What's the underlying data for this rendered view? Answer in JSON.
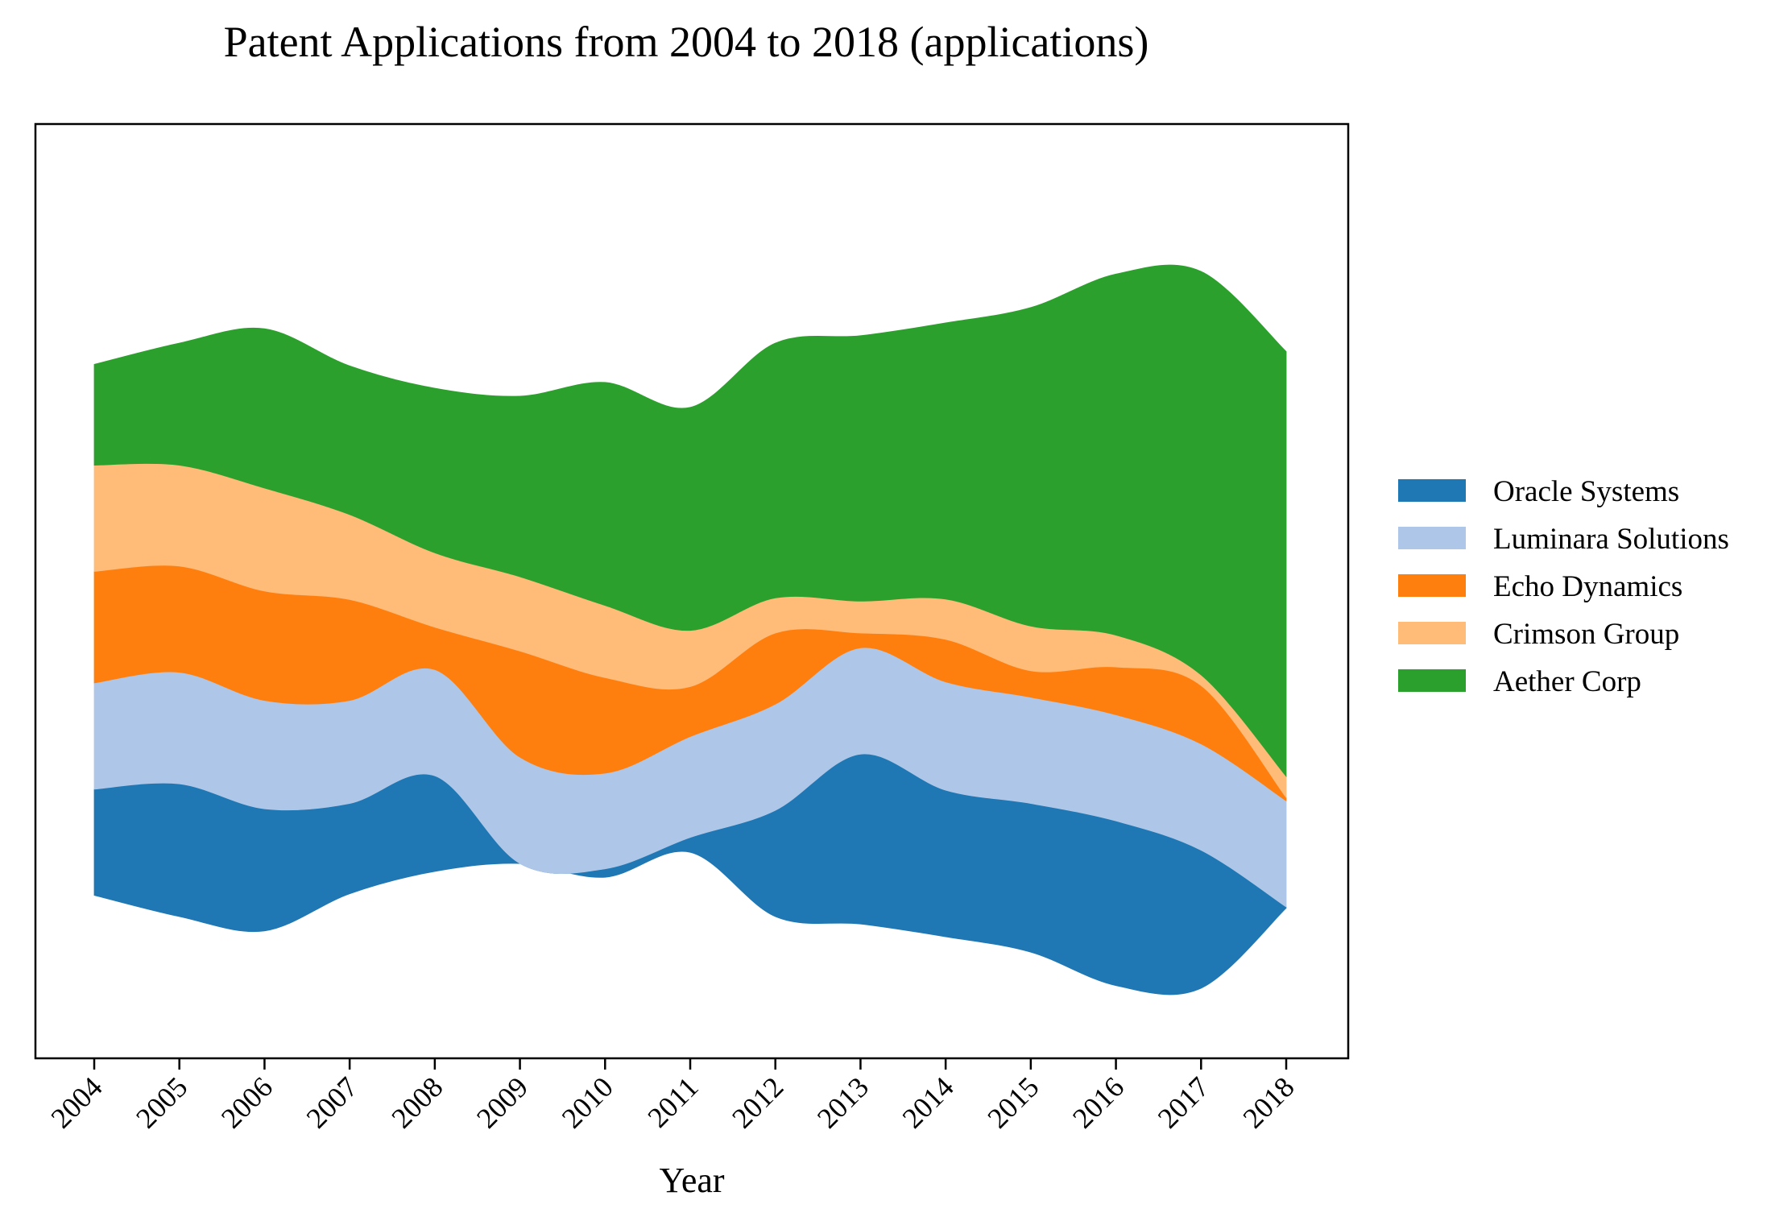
{
  "chart_data": {
    "type": "area",
    "subtype": "streamgraph",
    "title": "Patent Applications from 2004 to 2018 (applications)",
    "xlabel": "Year",
    "ylabel": "",
    "x": [
      "2004",
      "2005",
      "2006",
      "2007",
      "2008",
      "2009",
      "2010",
      "2011",
      "2012",
      "2013",
      "2014",
      "2015",
      "2016",
      "2017",
      "2018"
    ],
    "series": [
      {
        "name": "Oracle Systems",
        "color": "#1f77b4",
        "values": [
          100,
          125,
          115,
          85,
          90,
          0,
          8,
          14,
          100,
          160,
          138,
          140,
          155,
          130,
          1
        ]
      },
      {
        "name": "Luminara Solutions",
        "color": "#aec7e8",
        "values": [
          100,
          105,
          102,
          97,
          100,
          100,
          90,
          95,
          100,
          100,
          102,
          100,
          100,
          100,
          100
        ]
      },
      {
        "name": "Echo Dynamics",
        "color": "#ff7f0e",
        "values": [
          105,
          100,
          103,
          95,
          40,
          100,
          90,
          47,
          67,
          14,
          40,
          25,
          45,
          55,
          3
        ]
      },
      {
        "name": "Crimson Group",
        "color": "#ffbb78",
        "values": [
          100,
          95,
          97,
          80,
          70,
          70,
          68,
          53,
          33,
          30,
          38,
          42,
          30,
          10,
          20
        ]
      },
      {
        "name": "Aether Corp",
        "color": "#2ca02c",
        "values": [
          95,
          115,
          150,
          140,
          155,
          170,
          210,
          210,
          240,
          250,
          260,
          300,
          340,
          380,
          400
        ]
      }
    ],
    "grid": false,
    "legend_position": "right"
  }
}
